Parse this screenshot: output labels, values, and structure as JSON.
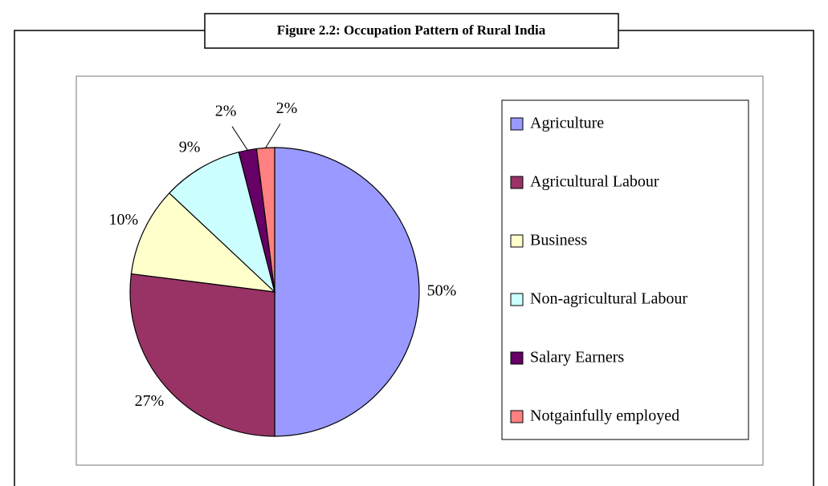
{
  "chart_data": {
    "type": "pie",
    "title": "Figure 2.2: Occupation Pattern of Rural India",
    "categories": [
      "Agriculture",
      "Agricultural Labour",
      "Business",
      "Non-agricultural Labour",
      "Salary Earners",
      "Notgainfully employed"
    ],
    "values": [
      50,
      27,
      10,
      9,
      2,
      2
    ],
    "value_labels": [
      "50%",
      "27%",
      "10%",
      "9%",
      "2%",
      "2%"
    ],
    "colors": [
      "#9999ff",
      "#993366",
      "#ffffcc",
      "#ccffff",
      "#660066",
      "#ff8080"
    ],
    "legend": "right"
  }
}
